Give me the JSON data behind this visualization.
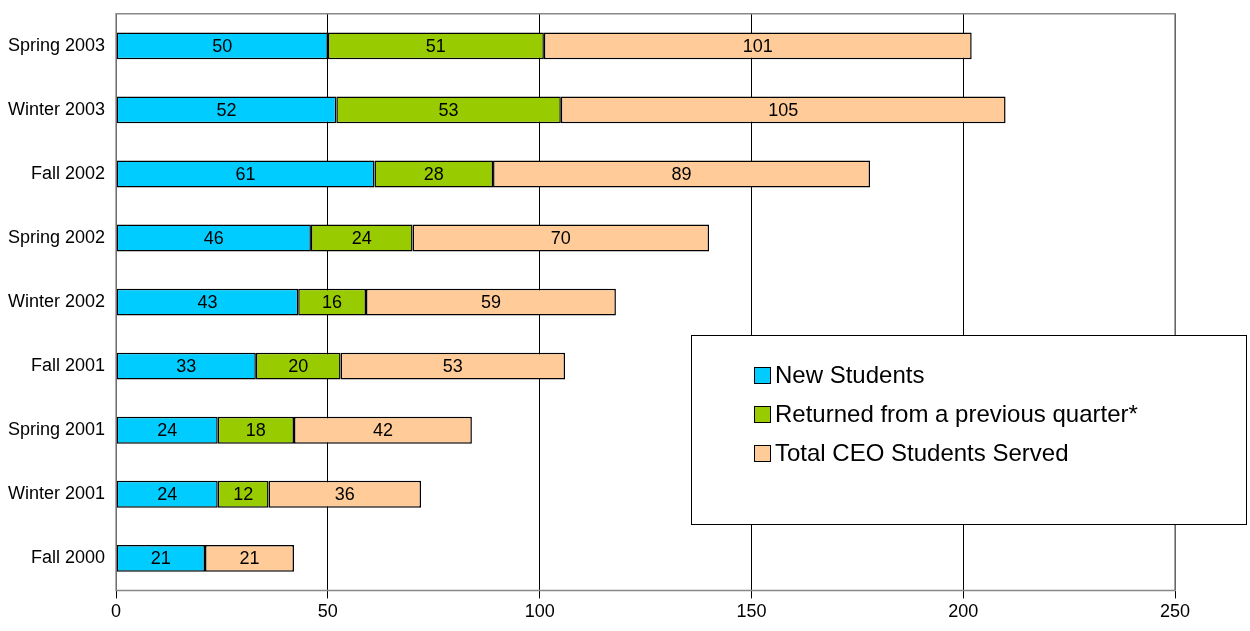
{
  "chart_data": {
    "type": "bar",
    "orientation": "horizontal",
    "stacked": true,
    "categories": [
      "Spring 2003",
      "Winter 2003",
      "Fall 2002",
      "Spring 2002",
      "Winter 2002",
      "Fall 2001",
      "Spring 2001",
      "Winter 2001",
      "Fall 2000"
    ],
    "series": [
      {
        "name": "New Students",
        "color": "#00ccff",
        "values": [
          50,
          52,
          61,
          46,
          43,
          33,
          24,
          24,
          21
        ]
      },
      {
        "name": "Returned from a previous quarter*",
        "color": "#99cc00",
        "values": [
          51,
          53,
          28,
          24,
          16,
          20,
          18,
          12,
          null
        ]
      },
      {
        "name": "Total CEO Students Served",
        "color": "#ffcc99",
        "values": [
          101,
          105,
          89,
          70,
          59,
          53,
          42,
          36,
          21
        ]
      }
    ],
    "xlim": [
      0,
      250
    ],
    "xticks": [
      0,
      50,
      100,
      150,
      200,
      250
    ],
    "grid": "x",
    "legend": "bottom right",
    "data_labels": true
  }
}
